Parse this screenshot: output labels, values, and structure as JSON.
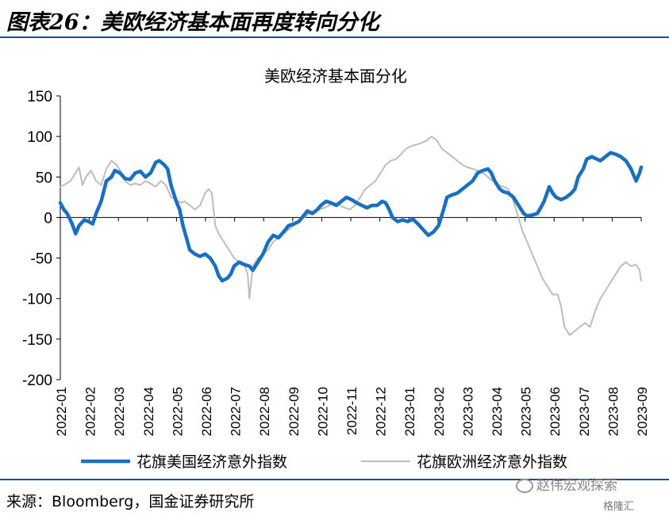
{
  "figure": {
    "title": "图表26：美欧经济基本面再度转向分化",
    "source": "来源：Bloomberg，国金证券研究所",
    "watermark": "赵伟宏观探索",
    "watermark2": "格隆汇"
  },
  "chart_data": {
    "type": "line",
    "title": "美欧经济基本面分化",
    "xlabel": "",
    "ylabel": "",
    "ylim": [
      -200,
      150
    ],
    "yticks": [
      150,
      100,
      50,
      0,
      -50,
      -100,
      -150,
      -200
    ],
    "ytick_labels": [
      "150",
      "100",
      "50",
      "0",
      "-50",
      "-100",
      "-150",
      "-200"
    ],
    "x_range": [
      2022.0,
      2023.705
    ],
    "categories": [
      "2022-01",
      "2022-02",
      "2022-03",
      "2022-04",
      "2022-05",
      "2022-06",
      "2022-07",
      "2022-08",
      "2022-09",
      "2022-10",
      "2022-11",
      "2022-12",
      "2023-01",
      "2023-02",
      "2023-03",
      "2023-04",
      "2023-05",
      "2023-06",
      "2023-07",
      "2023-08",
      "2023-09"
    ],
    "grid": false,
    "legend_position": "bottom",
    "series": [
      {
        "name": "花旗美国经济意外指数",
        "color": "#1a6fc0",
        "points": [
          [
            2022.0,
            18
          ],
          [
            2022.01,
            10
          ],
          [
            2022.02,
            5
          ],
          [
            2022.035,
            -8
          ],
          [
            2022.045,
            -20
          ],
          [
            2022.055,
            -10
          ],
          [
            2022.07,
            -3
          ],
          [
            2022.083,
            -5
          ],
          [
            2022.095,
            -8
          ],
          [
            2022.105,
            5
          ],
          [
            2022.12,
            20
          ],
          [
            2022.135,
            45
          ],
          [
            2022.15,
            50
          ],
          [
            2022.16,
            58
          ],
          [
            2022.175,
            55
          ],
          [
            2022.19,
            48
          ],
          [
            2022.205,
            47
          ],
          [
            2022.22,
            55
          ],
          [
            2022.235,
            57
          ],
          [
            2022.25,
            50
          ],
          [
            2022.265,
            55
          ],
          [
            2022.28,
            68
          ],
          [
            2022.29,
            70
          ],
          [
            2022.305,
            65
          ],
          [
            2022.315,
            60
          ],
          [
            2022.325,
            40
          ],
          [
            2022.34,
            20
          ],
          [
            2022.35,
            10
          ],
          [
            2022.36,
            -10
          ],
          [
            2022.37,
            -25
          ],
          [
            2022.38,
            -40
          ],
          [
            2022.395,
            -45
          ],
          [
            2022.41,
            -48
          ],
          [
            2022.425,
            -45
          ],
          [
            2022.44,
            -50
          ],
          [
            2022.455,
            -60
          ],
          [
            2022.465,
            -72
          ],
          [
            2022.475,
            -78
          ],
          [
            2022.49,
            -75
          ],
          [
            2022.5,
            -70
          ],
          [
            2022.51,
            -60
          ],
          [
            2022.525,
            -55
          ],
          [
            2022.54,
            -58
          ],
          [
            2022.555,
            -60
          ],
          [
            2022.565,
            -65
          ],
          [
            2022.58,
            -55
          ],
          [
            2022.595,
            -45
          ],
          [
            2022.61,
            -30
          ],
          [
            2022.625,
            -22
          ],
          [
            2022.64,
            -25
          ],
          [
            2022.655,
            -18
          ],
          [
            2022.67,
            -10
          ],
          [
            2022.685,
            -8
          ],
          [
            2022.7,
            -5
          ],
          [
            2022.71,
            0
          ],
          [
            2022.725,
            8
          ],
          [
            2022.74,
            5
          ],
          [
            2022.755,
            10
          ],
          [
            2022.765,
            15
          ],
          [
            2022.78,
            20
          ],
          [
            2022.795,
            18
          ],
          [
            2022.81,
            15
          ],
          [
            2022.825,
            20
          ],
          [
            2022.84,
            25
          ],
          [
            2022.855,
            22
          ],
          [
            2022.87,
            18
          ],
          [
            2022.885,
            15
          ],
          [
            2022.9,
            12
          ],
          [
            2022.915,
            15
          ],
          [
            2022.93,
            15
          ],
          [
            2022.945,
            20
          ],
          [
            2022.955,
            18
          ],
          [
            2022.965,
            10
          ],
          [
            2022.975,
            0
          ],
          [
            2022.99,
            -5
          ],
          [
            2023.005,
            -3
          ],
          [
            2023.02,
            -5
          ],
          [
            2023.035,
            -2
          ],
          [
            2023.05,
            -8
          ],
          [
            2023.065,
            -15
          ],
          [
            2023.08,
            -22
          ],
          [
            2023.095,
            -18
          ],
          [
            2023.11,
            -10
          ],
          [
            2023.125,
            10
          ],
          [
            2023.135,
            25
          ],
          [
            2023.15,
            28
          ],
          [
            2023.165,
            30
          ],
          [
            2023.18,
            35
          ],
          [
            2023.195,
            40
          ],
          [
            2023.21,
            45
          ],
          [
            2023.225,
            55
          ],
          [
            2023.24,
            58
          ],
          [
            2023.255,
            60
          ],
          [
            2023.265,
            55
          ],
          [
            2023.275,
            45
          ],
          [
            2023.29,
            35
          ],
          [
            2023.3,
            32
          ],
          [
            2023.315,
            30
          ],
          [
            2023.33,
            25
          ],
          [
            2023.345,
            15
          ],
          [
            2023.36,
            5
          ],
          [
            2023.37,
            2
          ],
          [
            2023.385,
            3
          ],
          [
            2023.4,
            5
          ],
          [
            2023.41,
            12
          ],
          [
            2023.42,
            20
          ],
          [
            2023.435,
            38
          ],
          [
            2023.445,
            30
          ],
          [
            2023.455,
            25
          ],
          [
            2023.47,
            22
          ],
          [
            2023.485,
            25
          ],
          [
            2023.5,
            30
          ],
          [
            2023.51,
            35
          ],
          [
            2023.52,
            50
          ],
          [
            2023.535,
            60
          ],
          [
            2023.545,
            72
          ],
          [
            2023.56,
            75
          ],
          [
            2023.575,
            72
          ],
          [
            2023.585,
            70
          ],
          [
            2023.6,
            75
          ],
          [
            2023.615,
            80
          ],
          [
            2023.63,
            78
          ],
          [
            2023.645,
            75
          ],
          [
            2023.66,
            70
          ],
          [
            2023.675,
            60
          ],
          [
            2023.69,
            45
          ],
          [
            2023.7,
            55
          ],
          [
            2023.705,
            62
          ]
        ]
      },
      {
        "name": "花旗欧洲经济意外指数",
        "color": "#bdbdbd",
        "points": [
          [
            2022.0,
            38
          ],
          [
            2022.01,
            40
          ],
          [
            2022.03,
            45
          ],
          [
            2022.045,
            55
          ],
          [
            2022.055,
            62
          ],
          [
            2022.065,
            40
          ],
          [
            2022.075,
            50
          ],
          [
            2022.09,
            58
          ],
          [
            2022.105,
            45
          ],
          [
            2022.12,
            40
          ],
          [
            2022.135,
            60
          ],
          [
            2022.15,
            70
          ],
          [
            2022.165,
            65
          ],
          [
            2022.18,
            55
          ],
          [
            2022.19,
            45
          ],
          [
            2022.205,
            40
          ],
          [
            2022.22,
            42
          ],
          [
            2022.235,
            40
          ],
          [
            2022.25,
            45
          ],
          [
            2022.265,
            42
          ],
          [
            2022.28,
            38
          ],
          [
            2022.295,
            45
          ],
          [
            2022.31,
            40
          ],
          [
            2022.325,
            25
          ],
          [
            2022.34,
            22
          ],
          [
            2022.355,
            18
          ],
          [
            2022.365,
            20
          ],
          [
            2022.38,
            15
          ],
          [
            2022.395,
            10
          ],
          [
            2022.41,
            15
          ],
          [
            2022.425,
            30
          ],
          [
            2022.435,
            35
          ],
          [
            2022.445,
            30
          ],
          [
            2022.455,
            -10
          ],
          [
            2022.465,
            -20
          ],
          [
            2022.48,
            -30
          ],
          [
            2022.495,
            -40
          ],
          [
            2022.51,
            -50
          ],
          [
            2022.525,
            -55
          ],
          [
            2022.54,
            -58
          ],
          [
            2022.55,
            -70
          ],
          [
            2022.555,
            -100
          ],
          [
            2022.565,
            -60
          ],
          [
            2022.58,
            -50
          ],
          [
            2022.595,
            -45
          ],
          [
            2022.61,
            -40
          ],
          [
            2022.625,
            -30
          ],
          [
            2022.64,
            -25
          ],
          [
            2022.655,
            -20
          ],
          [
            2022.67,
            -15
          ],
          [
            2022.685,
            -10
          ],
          [
            2022.7,
            -5
          ],
          [
            2022.715,
            0
          ],
          [
            2022.73,
            5
          ],
          [
            2022.745,
            8
          ],
          [
            2022.76,
            10
          ],
          [
            2022.775,
            12
          ],
          [
            2022.79,
            15
          ],
          [
            2022.805,
            18
          ],
          [
            2022.82,
            15
          ],
          [
            2022.835,
            12
          ],
          [
            2022.85,
            10
          ],
          [
            2022.865,
            15
          ],
          [
            2022.88,
            25
          ],
          [
            2022.895,
            35
          ],
          [
            2022.91,
            40
          ],
          [
            2022.925,
            45
          ],
          [
            2022.94,
            55
          ],
          [
            2022.955,
            65
          ],
          [
            2022.97,
            70
          ],
          [
            2022.985,
            72
          ],
          [
            2023.0,
            78
          ],
          [
            2023.015,
            85
          ],
          [
            2023.03,
            88
          ],
          [
            2023.045,
            90
          ],
          [
            2023.06,
            92
          ],
          [
            2023.075,
            95
          ],
          [
            2023.09,
            100
          ],
          [
            2023.105,
            95
          ],
          [
            2023.12,
            85
          ],
          [
            2023.135,
            80
          ],
          [
            2023.15,
            75
          ],
          [
            2023.165,
            70
          ],
          [
            2023.18,
            65
          ],
          [
            2023.195,
            62
          ],
          [
            2023.21,
            60
          ],
          [
            2023.225,
            58
          ],
          [
            2023.24,
            55
          ],
          [
            2023.255,
            50
          ],
          [
            2023.27,
            45
          ],
          [
            2023.285,
            40
          ],
          [
            2023.3,
            38
          ],
          [
            2023.315,
            35
          ],
          [
            2023.33,
            20
          ],
          [
            2023.345,
            0
          ],
          [
            2023.355,
            -15
          ],
          [
            2023.37,
            -30
          ],
          [
            2023.385,
            -45
          ],
          [
            2023.4,
            -60
          ],
          [
            2023.415,
            -75
          ],
          [
            2023.43,
            -85
          ],
          [
            2023.445,
            -95
          ],
          [
            2023.46,
            -95
          ],
          [
            2023.47,
            -110
          ],
          [
            2023.48,
            -135
          ],
          [
            2023.495,
            -145
          ],
          [
            2023.51,
            -140
          ],
          [
            2023.525,
            -135
          ],
          [
            2023.54,
            -130
          ],
          [
            2023.555,
            -135
          ],
          [
            2023.57,
            -115
          ],
          [
            2023.585,
            -100
          ],
          [
            2023.6,
            -90
          ],
          [
            2023.615,
            -80
          ],
          [
            2023.63,
            -70
          ],
          [
            2023.645,
            -60
          ],
          [
            2023.66,
            -55
          ],
          [
            2023.675,
            -60
          ],
          [
            2023.69,
            -58
          ],
          [
            2023.7,
            -65
          ],
          [
            2023.705,
            -78
          ]
        ]
      }
    ]
  }
}
